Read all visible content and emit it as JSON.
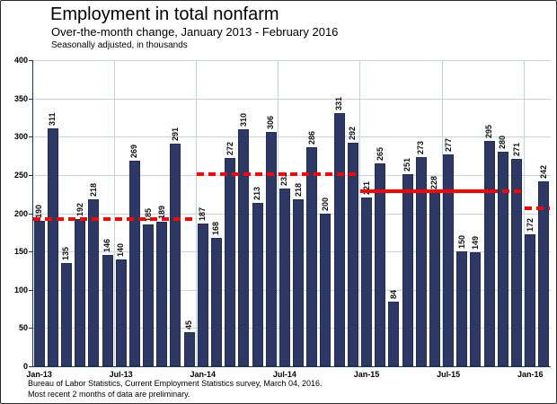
{
  "header": {
    "title": "Employment in total nonfarm",
    "subtitle": "Over-the-month change, January 2013 - February 2016",
    "note": "Seasonally adjusted, in thousands"
  },
  "footer": {
    "line1": "Bureau of Labor Statistics, Current Employment Statistics survey, March 04, 2016.",
    "line2": "Most recent 2 months of data are preliminary."
  },
  "chart_data": {
    "type": "bar",
    "title": "Employment in total nonfarm",
    "subtitle": "Over-the-month change, January 2013 - February 2016",
    "units_note": "Seasonally adjusted, in thousands",
    "categories": [
      "Jan-13",
      "Feb-13",
      "Mar-13",
      "Apr-13",
      "May-13",
      "Jun-13",
      "Jul-13",
      "Aug-13",
      "Sep-13",
      "Oct-13",
      "Nov-13",
      "Dec-13",
      "Jan-14",
      "Feb-14",
      "Mar-14",
      "Apr-14",
      "May-14",
      "Jun-14",
      "Jul-14",
      "Aug-14",
      "Sep-14",
      "Oct-14",
      "Nov-14",
      "Dec-14",
      "Jan-15",
      "Feb-15",
      "Mar-15",
      "Apr-15",
      "May-15",
      "Jun-15",
      "Jul-15",
      "Aug-15",
      "Sep-15",
      "Oct-15",
      "Nov-15",
      "Dec-15",
      "Jan-16",
      "Feb-16"
    ],
    "values": [
      190,
      311,
      135,
      192,
      218,
      146,
      140,
      269,
      185,
      189,
      291,
      45,
      187,
      168,
      272,
      310,
      213,
      306,
      232,
      218,
      286,
      200,
      331,
      292,
      221,
      265,
      84,
      251,
      273,
      228,
      277,
      150,
      149,
      295,
      280,
      271,
      172,
      242
    ],
    "x_tick_labels": [
      "Jan-13",
      "Jul-13",
      "Jan-14",
      "Jul-14",
      "Jan-15",
      "Jul-15",
      "Jan-16"
    ],
    "x_tick_months": [
      0,
      6,
      12,
      18,
      24,
      30,
      36
    ],
    "y_ticks": [
      0,
      50,
      100,
      150,
      200,
      250,
      300,
      350,
      400
    ],
    "ylim": [
      0,
      400
    ],
    "grid": "on",
    "legend": "none",
    "bar_color": "#2d3865",
    "gridline_color": "#c3d4e7",
    "avg_line_color": "#ff0000",
    "avg_lines": [
      {
        "year": "2013",
        "value": 192,
        "start_month": 0,
        "end_month": 11,
        "style": "dashed"
      },
      {
        "year": "2014",
        "value": 251,
        "start_month": 12,
        "end_month": 23,
        "style": "dashed"
      },
      {
        "year": "2015",
        "value": 229,
        "start_month": 24,
        "end_month": 35,
        "style": "solid_with_dash_end"
      },
      {
        "year": "2016",
        "value": 207,
        "start_month": 36,
        "end_month": 37,
        "style": "dashed"
      }
    ]
  }
}
